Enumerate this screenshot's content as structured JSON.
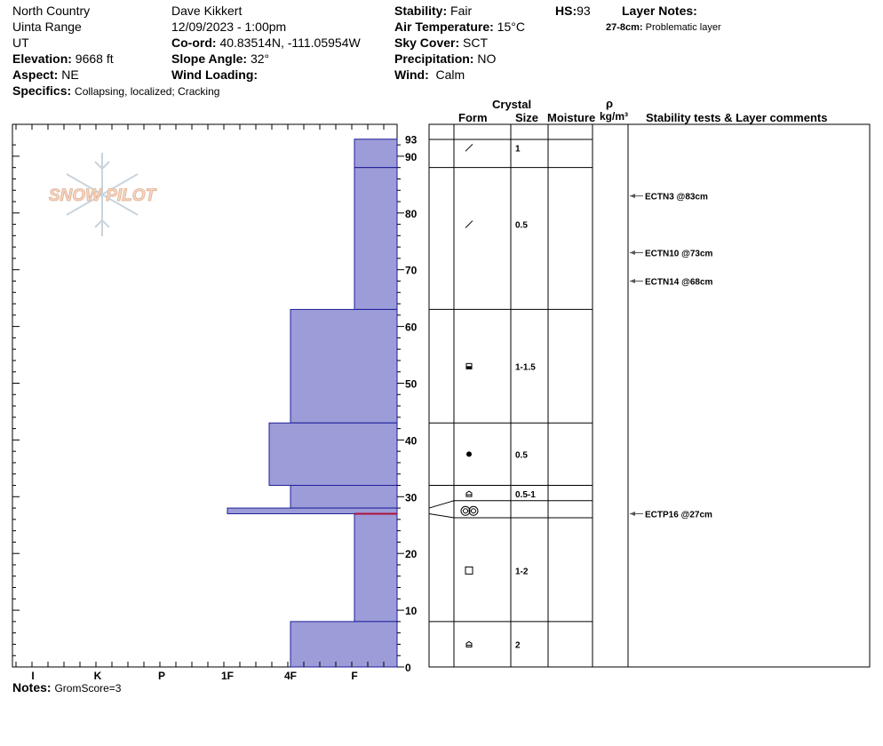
{
  "header": {
    "location": "North Country",
    "range": "Uinta Range",
    "state": "UT",
    "observer": "Dave Kikkert",
    "datetime": "12/09/2023 - 1:00pm",
    "elevation_label": "Elevation:",
    "elevation": "9668 ft",
    "aspect_label": "Aspect:",
    "aspect": "NE",
    "coord_label": "Co-ord:",
    "coord": "40.83514N, -111.05954W",
    "slope_label": "Slope Angle:",
    "slope": "32°",
    "wind_loading_label": "Wind Loading:",
    "wind_loading": "",
    "specifics_label": "Specifics:",
    "specifics": "Collapsing, localized; Cracking",
    "stability_label": "Stability:",
    "stability": "Fair",
    "air_temp_label": "Air Temperature:",
    "air_temp": "15°C",
    "sky_label": "Sky Cover:",
    "sky": "SCT",
    "precip_label": "Precipitation:",
    "precip": "NO",
    "wind_label": "Wind:",
    "wind": "Calm",
    "hs_label": "HS:",
    "hs": "93",
    "layer_notes_label": "Layer Notes:",
    "layer_note_range": "27-8cm:",
    "layer_note_text": "Problematic layer"
  },
  "logo": {
    "text": "SNOW PILOT"
  },
  "notes": {
    "label": "Notes:",
    "text": "GromScore=3"
  },
  "columns": {
    "crystal": "Crystal",
    "form": "Form",
    "size": "Size",
    "moisture": "Moisture",
    "rho": "ρ",
    "density_unit": "kg/m³",
    "comments": "Stability tests & Layer comments"
  },
  "chart_data": {
    "type": "bar",
    "orientation": "horizontal",
    "ylim": [
      0,
      93
    ],
    "y_ticks": [
      0,
      10,
      20,
      30,
      40,
      50,
      60,
      70,
      80,
      90
    ],
    "top_label": "93",
    "hardness_categories": [
      "I",
      "K",
      "P",
      "1F",
      "4F",
      "F"
    ],
    "layers": [
      {
        "bottom": 88,
        "top": 93,
        "hardness": "F"
      },
      {
        "bottom": 63,
        "top": 88,
        "hardness": "F"
      },
      {
        "bottom": 43,
        "top": 63,
        "hardness": "4F"
      },
      {
        "bottom": 32,
        "top": 43,
        "hardness": "4F+"
      },
      {
        "bottom": 28,
        "top": 32,
        "hardness": "4F"
      },
      {
        "bottom": 27,
        "top": 28,
        "hardness": "1F"
      },
      {
        "bottom": 8,
        "top": 27,
        "hardness": "F"
      },
      {
        "bottom": 0,
        "top": 8,
        "hardness": "4F"
      }
    ],
    "weak_layer_cm": 27,
    "crystals": [
      {
        "bottom": 93,
        "top": 93,
        "form": "decomposing",
        "size": "1"
      },
      {
        "bottom": 63,
        "top": 93,
        "form": "decomposing",
        "size": "0.5"
      },
      {
        "bottom": 43,
        "top": 63,
        "form": "faceted rounded",
        "size": "1-1.5"
      },
      {
        "bottom": 32,
        "top": 43,
        "form": "rounded",
        "size": "0.5"
      },
      {
        "bottom": 29,
        "top": 32,
        "form": "depth hoar",
        "size": "0.5-1"
      },
      {
        "bottom": 26,
        "top": 29,
        "form": "crust",
        "size": ""
      },
      {
        "bottom": 8,
        "top": 26,
        "form": "faceted",
        "size": "1-2"
      },
      {
        "bottom": 0,
        "top": 8,
        "form": "depth hoar",
        "size": "2"
      }
    ],
    "tests": [
      {
        "depth": 83,
        "label": "ECTN3 @83cm"
      },
      {
        "depth": 73,
        "label": "ECTN10 @73cm"
      },
      {
        "depth": 68,
        "label": "ECTN14 @68cm"
      },
      {
        "depth": 27,
        "label": "ECTP16 @27cm"
      }
    ]
  }
}
